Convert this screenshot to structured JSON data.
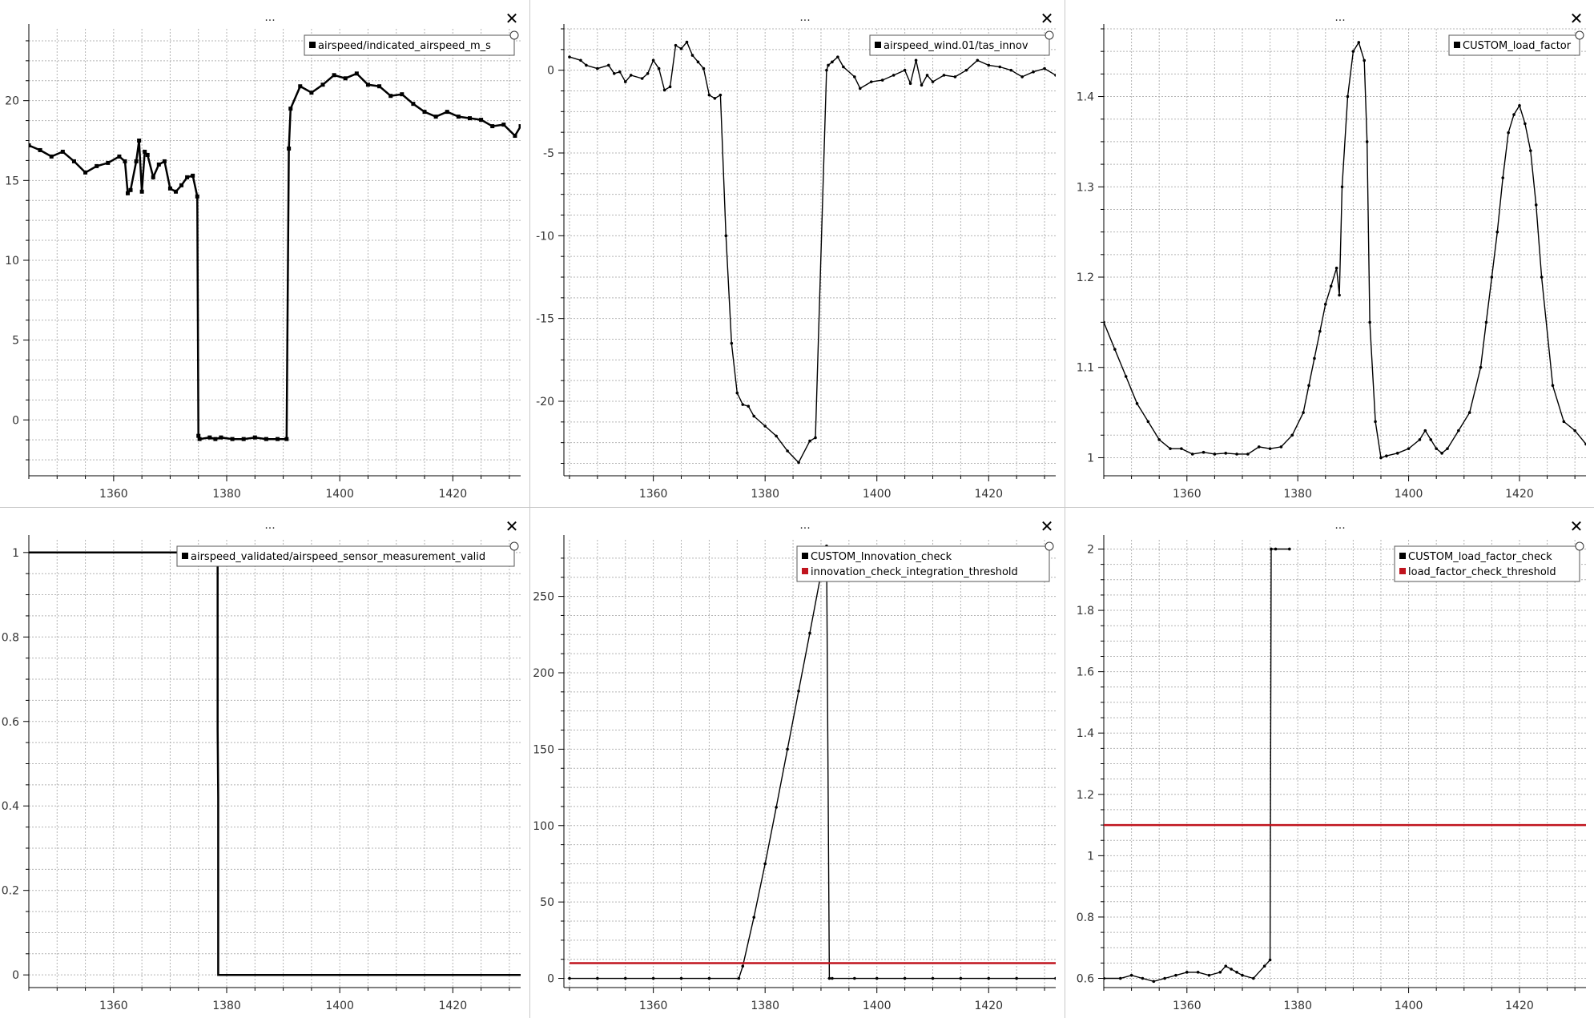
{
  "window": {
    "panel_title": "...",
    "close_glyph": "✕"
  },
  "colors": {
    "series_black": "#000000",
    "threshold_red": "#c0141e",
    "grid": "#b4b4b4",
    "background": "#ffffff"
  },
  "chart_data": [
    {
      "type": "line",
      "title": "...",
      "xlim": [
        1345,
        1432
      ],
      "ylim": [
        -3.5,
        24.5
      ],
      "xticks": [
        1360,
        1380,
        1400,
        1420
      ],
      "yticks": [
        0,
        5,
        10,
        15,
        20
      ],
      "grid": true,
      "legend_position": "top-right",
      "series": [
        {
          "name": "airspeed/indicated_airspeed_m_s",
          "color": "#000000",
          "marker": "square",
          "x": [
            1345,
            1347,
            1349,
            1351,
            1353,
            1355,
            1357,
            1359,
            1361,
            1362,
            1362.5,
            1363,
            1364,
            1364.5,
            1365,
            1365.5,
            1366,
            1367,
            1368,
            1369,
            1370,
            1371,
            1372,
            1373,
            1374,
            1374.8,
            1375,
            1375.2,
            1377,
            1378,
            1379,
            1381,
            1383,
            1385,
            1387,
            1389,
            1390.6,
            1391,
            1391.3,
            1393,
            1395,
            1397,
            1399,
            1401,
            1403,
            1405,
            1407,
            1409,
            1411,
            1413,
            1415,
            1417,
            1419,
            1421,
            1423,
            1425,
            1427,
            1429,
            1431,
            1432
          ],
          "y": [
            17.2,
            16.9,
            16.5,
            16.8,
            16.2,
            15.5,
            15.9,
            16.1,
            16.5,
            16.2,
            14.2,
            14.4,
            16.2,
            17.5,
            14.3,
            16.8,
            16.6,
            15.2,
            16.0,
            16.2,
            14.5,
            14.3,
            14.7,
            15.2,
            15.3,
            14.0,
            -1.0,
            -1.2,
            -1.1,
            -1.2,
            -1.1,
            -1.2,
            -1.2,
            -1.1,
            -1.2,
            -1.2,
            -1.2,
            17.0,
            19.5,
            20.9,
            20.5,
            21.0,
            21.6,
            21.4,
            21.7,
            21.0,
            20.9,
            20.3,
            20.4,
            19.8,
            19.3,
            19.0,
            19.3,
            19.0,
            18.9,
            18.8,
            18.4,
            18.5,
            17.8,
            18.4
          ]
        }
      ]
    },
    {
      "type": "line",
      "title": "...",
      "xlim": [
        1344,
        1432
      ],
      "ylim": [
        -24.5,
        2.5
      ],
      "xticks": [
        1360,
        1380,
        1400,
        1420
      ],
      "yticks": [
        0,
        -5,
        -10,
        -15,
        -20
      ],
      "grid": true,
      "legend_position": "top-right",
      "series": [
        {
          "name": "airspeed_wind.01/tas_innov",
          "color": "#000000",
          "marker": "dot",
          "x": [
            1345,
            1347,
            1348,
            1350,
            1352,
            1353,
            1354,
            1355,
            1356,
            1358,
            1359,
            1360,
            1361,
            1362,
            1363,
            1364,
            1365,
            1366,
            1367,
            1368,
            1369,
            1370,
            1371,
            1372,
            1373,
            1374,
            1375,
            1376,
            1377,
            1378,
            1380,
            1382,
            1384,
            1386,
            1388,
            1389,
            1391,
            1391.3,
            1392,
            1393,
            1394,
            1396,
            1397,
            1399,
            1401,
            1403,
            1405,
            1406,
            1407,
            1408,
            1409,
            1410,
            1412,
            1414,
            1416,
            1418,
            1420,
            1422,
            1424,
            1426,
            1428,
            1430,
            1432
          ],
          "y": [
            0.8,
            0.6,
            0.3,
            0.1,
            0.3,
            -0.2,
            -0.1,
            -0.7,
            -0.3,
            -0.5,
            -0.2,
            0.6,
            0.1,
            -1.2,
            -1.0,
            1.5,
            1.3,
            1.7,
            0.9,
            0.5,
            0.1,
            -1.5,
            -1.7,
            -1.5,
            -10.0,
            -16.5,
            -19.5,
            -20.2,
            -20.3,
            -20.9,
            -21.5,
            -22.1,
            -23.0,
            -23.7,
            -22.4,
            -22.2,
            0.0,
            0.3,
            0.5,
            0.8,
            0.2,
            -0.4,
            -1.1,
            -0.7,
            -0.6,
            -0.3,
            0.0,
            -0.8,
            0.6,
            -0.9,
            -0.3,
            -0.7,
            -0.3,
            -0.4,
            0.0,
            0.6,
            0.3,
            0.2,
            0.0,
            -0.4,
            -0.1,
            0.1,
            -0.3
          ]
        }
      ]
    },
    {
      "type": "line",
      "title": "...",
      "xlim": [
        1345,
        1432
      ],
      "ylim": [
        0.98,
        1.475
      ],
      "xticks": [
        1360,
        1380,
        1400,
        1420
      ],
      "yticks": [
        1,
        1.1,
        1.2,
        1.3,
        1.4
      ],
      "grid": true,
      "legend_position": "top-right",
      "series": [
        {
          "name": "CUSTOM_load_factor",
          "color": "#000000",
          "marker": "dot",
          "x": [
            1345,
            1347,
            1349,
            1351,
            1353,
            1355,
            1357,
            1359,
            1361,
            1363,
            1365,
            1367,
            1369,
            1371,
            1373,
            1375,
            1377,
            1379,
            1381,
            1382,
            1383,
            1384,
            1385,
            1386,
            1387,
            1387.5,
            1388,
            1389,
            1390,
            1391,
            1392,
            1392.5,
            1393,
            1394,
            1395,
            1396,
            1398,
            1400,
            1402,
            1403,
            1404,
            1405,
            1406,
            1407,
            1409,
            1411,
            1413,
            1414,
            1415,
            1416,
            1417,
            1418,
            1419,
            1420,
            1421,
            1422,
            1423,
            1424,
            1426,
            1428,
            1430,
            1432
          ],
          "y": [
            1.15,
            1.12,
            1.09,
            1.06,
            1.04,
            1.02,
            1.01,
            1.01,
            1.004,
            1.006,
            1.004,
            1.005,
            1.004,
            1.004,
            1.012,
            1.01,
            1.012,
            1.025,
            1.05,
            1.08,
            1.11,
            1.14,
            1.17,
            1.19,
            1.21,
            1.18,
            1.3,
            1.4,
            1.45,
            1.46,
            1.44,
            1.35,
            1.15,
            1.04,
            1.0,
            1.002,
            1.005,
            1.01,
            1.02,
            1.03,
            1.02,
            1.01,
            1.005,
            1.01,
            1.03,
            1.05,
            1.1,
            1.15,
            1.2,
            1.25,
            1.31,
            1.36,
            1.38,
            1.39,
            1.37,
            1.34,
            1.28,
            1.2,
            1.08,
            1.04,
            1.03,
            1.015
          ]
        }
      ]
    },
    {
      "type": "line",
      "title": "...",
      "xlim": [
        1345,
        1432
      ],
      "ylim": [
        -0.03,
        1.03
      ],
      "xticks": [
        1360,
        1380,
        1400,
        1420
      ],
      "yticks": [
        0,
        0.2,
        0.4,
        0.6,
        0.8,
        1
      ],
      "grid": true,
      "legend_position": "top-right",
      "series": [
        {
          "name": "airspeed_validated/airspeed_sensor_measurement_valid",
          "color": "#000000",
          "marker": "none",
          "x": [
            1345,
            1378.4,
            1378.4,
            1378.5,
            1378.5,
            1432
          ],
          "y": [
            1,
            1,
            0.58,
            0.42,
            0,
            0
          ]
        }
      ]
    },
    {
      "type": "line",
      "title": "...",
      "xlim": [
        1344,
        1432
      ],
      "ylim": [
        -6,
        287
      ],
      "xticks": [
        1360,
        1380,
        1400,
        1420
      ],
      "yticks": [
        0,
        50,
        100,
        150,
        200,
        250
      ],
      "grid": true,
      "legend_position": "top-right",
      "series": [
        {
          "name": "CUSTOM_Innovation_check",
          "color": "#000000",
          "marker": "dot",
          "x": [
            1345,
            1350,
            1355,
            1360,
            1365,
            1370,
            1375.3,
            1376,
            1378,
            1380,
            1382,
            1384,
            1386,
            1388,
            1390,
            1391,
            1391.5,
            1392,
            1396,
            1400,
            1405,
            1410,
            1415,
            1420,
            1425,
            1432
          ],
          "y": [
            0,
            0,
            0,
            0,
            0,
            0,
            0,
            8,
            40,
            75,
            112,
            150,
            188,
            226,
            265,
            283,
            0,
            0,
            0,
            0,
            0,
            0,
            0,
            0,
            0,
            0
          ]
        },
        {
          "name": "innovation_check_integration_threshold",
          "color": "#c0141e",
          "marker": "none",
          "x": [
            1345,
            1432
          ],
          "y": [
            10,
            10
          ]
        }
      ]
    },
    {
      "type": "line",
      "title": "...",
      "xlim": [
        1345,
        1432
      ],
      "ylim": [
        0.57,
        2.03
      ],
      "xticks": [
        1360,
        1380,
        1400,
        1420
      ],
      "yticks": [
        0.6,
        0.8,
        1,
        1.2,
        1.4,
        1.6,
        1.8,
        2
      ],
      "grid": true,
      "legend_position": "top-right",
      "series": [
        {
          "name": "CUSTOM_load_factor_check",
          "color": "#000000",
          "marker": "dot",
          "x": [
            1345,
            1348,
            1350,
            1352,
            1354,
            1356,
            1358,
            1360,
            1362,
            1364,
            1366,
            1367,
            1368,
            1369,
            1370,
            1372,
            1374,
            1375,
            1375.2,
            1376,
            1378.5
          ],
          "y": [
            0.6,
            0.6,
            0.61,
            0.6,
            0.59,
            0.6,
            0.61,
            0.62,
            0.62,
            0.61,
            0.62,
            0.64,
            0.63,
            0.62,
            0.61,
            0.6,
            0.64,
            0.66,
            2.0,
            2.0,
            2.0
          ]
        },
        {
          "name": "load_factor_check_threshold",
          "color": "#c0141e",
          "marker": "none",
          "x": [
            1345,
            1432
          ],
          "y": [
            1.1,
            1.1
          ]
        }
      ]
    }
  ]
}
